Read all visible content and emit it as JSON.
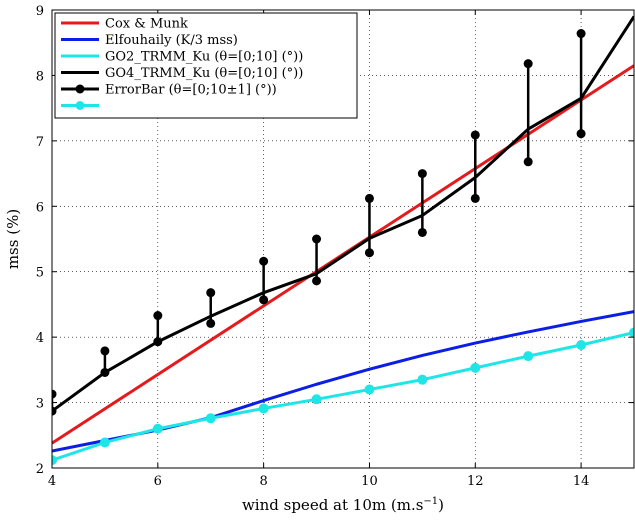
{
  "chart_data": {
    "type": "line",
    "xlabel": "wind speed at 10m (m.s",
    "xlabel_sup": "−1",
    "xlabel_end": ")",
    "ylabel": "mss (%)",
    "xlim": [
      4,
      15
    ],
    "ylim": [
      2,
      9
    ],
    "xticks": [
      "4",
      "6",
      "8",
      "10",
      "12",
      "14"
    ],
    "yticks": [
      "2",
      "3",
      "4",
      "5",
      "6",
      "7",
      "8",
      "9"
    ],
    "grid": "dotted",
    "legend_position": "top-left",
    "series": [
      {
        "name": "Cox & Munk",
        "color": "#e41a1c",
        "x": [
          4,
          15
        ],
        "y": [
          2.38,
          8.15
        ],
        "marker": "none"
      },
      {
        "name": "Elfouhaily (K/3 mss)",
        "color": "#0a1ee6",
        "x": [
          4,
          5,
          6,
          7,
          8,
          9,
          10,
          11,
          12,
          13,
          14,
          15
        ],
        "y": [
          2.26,
          2.42,
          2.58,
          2.77,
          3.03,
          3.28,
          3.51,
          3.72,
          3.91,
          4.08,
          4.24,
          4.39
        ],
        "marker": "none"
      },
      {
        "name": "GO2_TRMM_Ku (θ=[0;10] (°))",
        "color": "#1fe6e6",
        "x": [
          4,
          5,
          6,
          7,
          8,
          9,
          10,
          11,
          12,
          13,
          14,
          15
        ],
        "y": [
          2.12,
          2.39,
          2.6,
          2.76,
          2.91,
          3.05,
          3.2,
          3.35,
          3.53,
          3.71,
          3.88,
          4.07
        ],
        "marker": "none"
      },
      {
        "name": "GO4_TRMM_Ku (θ=[0;10] (°))",
        "color": "#000000",
        "x": [
          4,
          5,
          6,
          7,
          8,
          9,
          10,
          11,
          12,
          13,
          14,
          15
        ],
        "y": [
          2.87,
          3.46,
          3.93,
          4.32,
          4.68,
          4.97,
          5.51,
          5.86,
          6.44,
          7.18,
          7.65,
          8.9
        ],
        "marker": "none"
      },
      {
        "name": "ErrorBar (θ=[0;10±1] (°))",
        "color": "#000000",
        "x": [
          4,
          5,
          6,
          7,
          8,
          9,
          10,
          11,
          12,
          13,
          14
        ],
        "low": [
          2.87,
          3.46,
          3.93,
          4.21,
          4.57,
          4.86,
          5.29,
          5.6,
          6.12,
          6.68,
          7.11
        ],
        "high": [
          3.13,
          3.79,
          4.33,
          4.68,
          5.16,
          5.5,
          6.12,
          6.5,
          7.09,
          8.18,
          8.64
        ],
        "marker": "circle"
      },
      {
        "name": "",
        "color": "#1fe6e6",
        "x": [
          4,
          5,
          6,
          7,
          8,
          9,
          10,
          11,
          12,
          13,
          14,
          15
        ],
        "y": [
          2.12,
          2.39,
          2.6,
          2.76,
          2.91,
          3.05,
          3.2,
          3.35,
          3.53,
          3.71,
          3.88,
          4.07
        ],
        "marker": "circle"
      }
    ]
  }
}
